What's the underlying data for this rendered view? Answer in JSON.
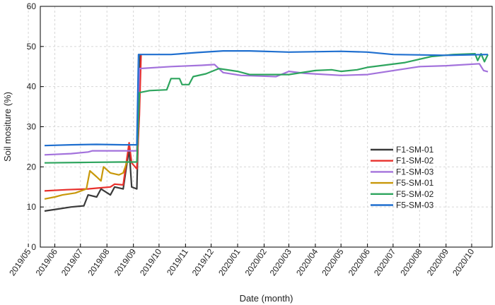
{
  "chart_data": {
    "type": "line",
    "xlabel": "Date (month)",
    "ylabel": "Soil mositure (%)",
    "ylim": [
      0,
      60
    ],
    "yticks": [
      0,
      10,
      20,
      30,
      40,
      50,
      60
    ],
    "xlim": [
      "2019-05-15",
      "2020-10-25"
    ],
    "xticks": [
      "2019/05",
      "2019/06",
      "2019/07",
      "2019/08",
      "2019/09",
      "2019/10",
      "2019/11",
      "2019/12",
      "2020/01",
      "2020/02",
      "2020/03",
      "2020/04",
      "2020/05",
      "2020/06",
      "2020/07",
      "2020/08",
      "2020/09",
      "2020/10"
    ],
    "grid": true,
    "legend_position": "right-middle",
    "series": [
      {
        "name": "F1-SM-01",
        "color": "#3a3a3a",
        "points": [
          [
            "2019-05-20",
            9.0
          ],
          [
            "2019-06-05",
            9.5
          ],
          [
            "2019-06-20",
            10.0
          ],
          [
            "2019-07-05",
            10.3
          ],
          [
            "2019-07-10",
            13.0
          ],
          [
            "2019-07-20",
            12.5
          ],
          [
            "2019-07-25",
            14.5
          ],
          [
            "2019-08-05",
            13.0
          ],
          [
            "2019-08-10",
            15.0
          ],
          [
            "2019-08-20",
            14.5
          ],
          [
            "2019-08-27",
            24.5
          ],
          [
            "2019-08-30",
            15.0
          ],
          [
            "2019-09-05",
            14.5
          ],
          [
            "2019-09-07",
            31.0
          ],
          [
            "2019-09-09",
            48.0
          ]
        ]
      },
      {
        "name": "F1-SM-02",
        "color": "#e8302c",
        "points": [
          [
            "2019-05-20",
            14.0
          ],
          [
            "2019-06-15",
            14.3
          ],
          [
            "2019-07-10",
            14.5
          ],
          [
            "2019-07-20",
            14.7
          ],
          [
            "2019-08-05",
            15.0
          ],
          [
            "2019-08-10",
            15.7
          ],
          [
            "2019-08-20",
            15.5
          ],
          [
            "2019-08-27",
            26.0
          ],
          [
            "2019-08-30",
            21.0
          ],
          [
            "2019-09-05",
            19.5
          ],
          [
            "2019-09-08",
            33.0
          ],
          [
            "2019-09-10",
            48.0
          ]
        ]
      },
      {
        "name": "F1-SM-03",
        "color": "#a372dc",
        "points": [
          [
            "2019-05-20",
            23.0
          ],
          [
            "2019-06-20",
            23.3
          ],
          [
            "2019-07-10",
            23.7
          ],
          [
            "2019-07-15",
            24.0
          ],
          [
            "2019-08-20",
            24.0
          ],
          [
            "2019-09-05",
            24.0
          ],
          [
            "2019-09-08",
            44.5
          ],
          [
            "2019-10-15",
            45.0
          ],
          [
            "2019-11-20",
            45.3
          ],
          [
            "2019-12-05",
            45.5
          ],
          [
            "2019-12-15",
            43.5
          ],
          [
            "2020-01-05",
            42.8
          ],
          [
            "2020-02-15",
            42.5
          ],
          [
            "2020-03-01",
            43.8
          ],
          [
            "2020-03-20",
            43.3
          ],
          [
            "2020-05-01",
            42.8
          ],
          [
            "2020-06-01",
            43.0
          ],
          [
            "2020-08-01",
            45.0
          ],
          [
            "2020-09-01",
            45.2
          ],
          [
            "2020-10-10",
            45.7
          ],
          [
            "2020-10-15",
            44.0
          ],
          [
            "2020-10-20",
            43.7
          ]
        ]
      },
      {
        "name": "F5-SM-01",
        "color": "#c8980a",
        "points": [
          [
            "2019-05-20",
            12.0
          ],
          [
            "2019-06-01",
            12.5
          ],
          [
            "2019-06-10",
            13.0
          ],
          [
            "2019-06-25",
            13.5
          ],
          [
            "2019-07-08",
            14.5
          ],
          [
            "2019-07-12",
            19.0
          ],
          [
            "2019-07-20",
            17.5
          ],
          [
            "2019-07-25",
            16.5
          ],
          [
            "2019-07-28",
            20.0
          ],
          [
            "2019-08-05",
            18.5
          ],
          [
            "2019-08-15",
            18.0
          ],
          [
            "2019-08-20",
            18.5
          ],
          [
            "2019-08-25",
            21.5
          ]
        ]
      },
      {
        "name": "F5-SM-02",
        "color": "#2ea55e",
        "points": [
          [
            "2019-05-20",
            21.0
          ],
          [
            "2019-07-01",
            21.1
          ],
          [
            "2019-08-15",
            21.2
          ],
          [
            "2019-09-05",
            21.2
          ],
          [
            "2019-09-08",
            38.5
          ],
          [
            "2019-09-20",
            39.0
          ],
          [
            "2019-10-10",
            39.2
          ],
          [
            "2019-10-15",
            42.0
          ],
          [
            "2019-10-25",
            42.0
          ],
          [
            "2019-10-28",
            40.5
          ],
          [
            "2019-11-05",
            40.5
          ],
          [
            "2019-11-10",
            42.5
          ],
          [
            "2019-11-25",
            43.2
          ],
          [
            "2019-12-10",
            44.5
          ],
          [
            "2020-01-01",
            43.8
          ],
          [
            "2020-01-15",
            43.0
          ],
          [
            "2020-03-01",
            43.0
          ],
          [
            "2020-04-01",
            44.0
          ],
          [
            "2020-04-20",
            44.2
          ],
          [
            "2020-05-01",
            43.8
          ],
          [
            "2020-05-20",
            44.2
          ],
          [
            "2020-06-01",
            44.8
          ],
          [
            "2020-07-15",
            46.0
          ],
          [
            "2020-08-15",
            47.5
          ],
          [
            "2020-09-10",
            48.0
          ],
          [
            "2020-10-05",
            48.2
          ],
          [
            "2020-10-08",
            46.5
          ],
          [
            "2020-10-12",
            48.2
          ],
          [
            "2020-10-16",
            46.2
          ],
          [
            "2020-10-20",
            48.0
          ]
        ]
      },
      {
        "name": "F5-SM-03",
        "color": "#1f6fcf",
        "points": [
          [
            "2019-05-20",
            25.3
          ],
          [
            "2019-06-20",
            25.5
          ],
          [
            "2019-07-20",
            25.6
          ],
          [
            "2019-08-20",
            25.5
          ],
          [
            "2019-09-05",
            25.5
          ],
          [
            "2019-09-07",
            48.0
          ],
          [
            "2019-10-15",
            48.0
          ],
          [
            "2019-11-15",
            48.5
          ],
          [
            "2019-12-15",
            48.9
          ],
          [
            "2020-01-15",
            48.9
          ],
          [
            "2020-03-01",
            48.6
          ],
          [
            "2020-05-01",
            48.8
          ],
          [
            "2020-06-01",
            48.6
          ],
          [
            "2020-07-01",
            48.0
          ],
          [
            "2020-09-01",
            47.8
          ],
          [
            "2020-10-20",
            48.0
          ]
        ]
      }
    ]
  }
}
